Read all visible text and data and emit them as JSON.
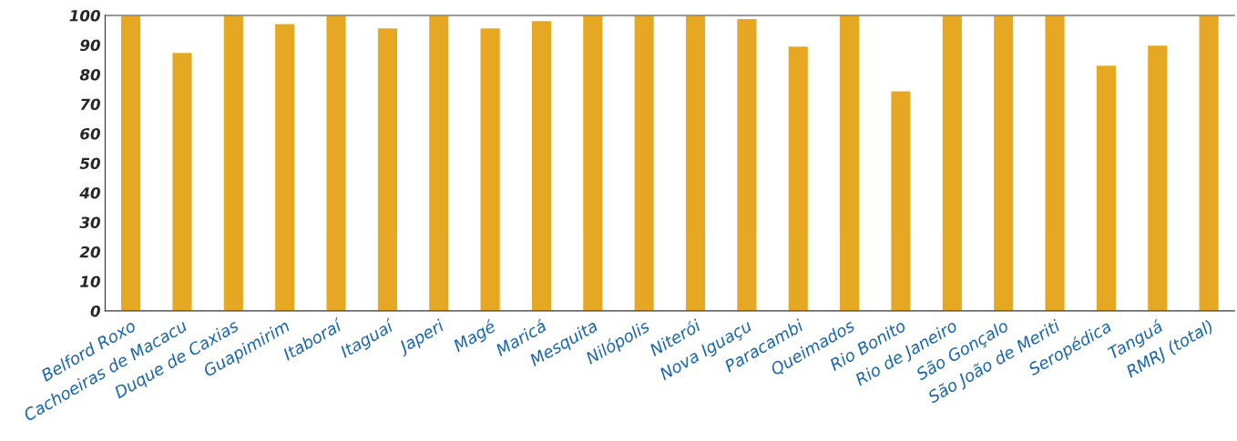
{
  "chart_data": {
    "type": "bar",
    "categories": [
      "Belford Roxo",
      "Cachoeiras de Macacu",
      "Duque de Caxias",
      "Guapimirim",
      "Itaboraí",
      "Itaguaí",
      "Japeri",
      "Magé",
      "Maricá",
      "Mesquita",
      "Nilópolis",
      "Niterói",
      "Nova Iguaçu",
      "Paracambi",
      "Queimados",
      "Rio Bonito",
      "Rio de Janeiro",
      "São Gonçalo",
      "São João de Meriti",
      "Seropédica",
      "Tanguá",
      "RMRJ (total)"
    ],
    "values": [
      100,
      87.5,
      100,
      97.3,
      100,
      95.8,
      100,
      95.8,
      98.3,
      100,
      100,
      100,
      99,
      89.7,
      100,
      74.5,
      100,
      100,
      100,
      83.2,
      90,
      100
    ],
    "color": "#e6a823",
    "ylim": [
      0,
      100
    ],
    "yticks": [
      0,
      10,
      20,
      30,
      40,
      50,
      60,
      70,
      80,
      90,
      100
    ],
    "grid": false,
    "legend": false
  }
}
